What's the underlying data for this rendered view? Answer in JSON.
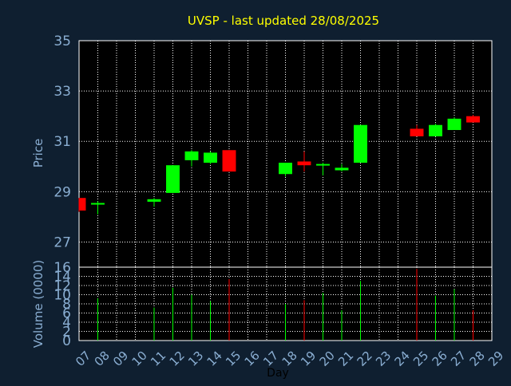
{
  "chart_data": [
    {
      "type": "candlestick",
      "title": "UVSP - last updated 28/08/2025",
      "ylabel": "Price",
      "ylim": [
        26,
        35
      ],
      "ytick_labels": [
        "27",
        "29",
        "31",
        "33",
        "35"
      ],
      "yticks": [
        27,
        29,
        31,
        33,
        35
      ],
      "grid": true,
      "colors": {
        "up": "#00ff00",
        "down": "#ff0000",
        "title": "#ffff00",
        "axis_text": "#8aaed2",
        "grid": "#ffffff",
        "background": "#0f1f30"
      },
      "candles": [
        {
          "day": 7,
          "open": 28.75,
          "high": 28.75,
          "low": 28.2,
          "close": 28.25
        },
        {
          "day": 8,
          "open": 28.5,
          "high": 28.62,
          "low": 28.1,
          "close": 28.55
        },
        {
          "day": 11,
          "open": 28.6,
          "high": 28.75,
          "low": 28.4,
          "close": 28.7
        },
        {
          "day": 12,
          "open": 28.95,
          "high": 30.05,
          "low": 28.95,
          "close": 30.05
        },
        {
          "day": 13,
          "open": 30.25,
          "high": 30.65,
          "low": 30.0,
          "close": 30.6
        },
        {
          "day": 14,
          "open": 30.15,
          "high": 30.6,
          "low": 30.1,
          "close": 30.55
        },
        {
          "day": 15,
          "open": 30.65,
          "high": 30.65,
          "low": 29.8,
          "close": 29.8
        },
        {
          "day": 18,
          "open": 29.7,
          "high": 30.15,
          "low": 29.6,
          "close": 30.15
        },
        {
          "day": 19,
          "open": 30.2,
          "high": 30.6,
          "low": 29.8,
          "close": 30.05
        },
        {
          "day": 20,
          "open": 30.05,
          "high": 30.15,
          "low": 29.65,
          "close": 30.1
        },
        {
          "day": 21,
          "open": 29.85,
          "high": 30.1,
          "low": 29.8,
          "close": 29.95
        },
        {
          "day": 22,
          "open": 30.15,
          "high": 31.65,
          "low": 30.15,
          "close": 31.65
        },
        {
          "day": 25,
          "open": 31.5,
          "high": 31.65,
          "low": 31.2,
          "close": 31.2
        },
        {
          "day": 26,
          "open": 31.2,
          "high": 31.7,
          "low": 31.2,
          "close": 31.65
        },
        {
          "day": 27,
          "open": 31.45,
          "high": 31.95,
          "low": 31.45,
          "close": 31.9
        },
        {
          "day": 28,
          "open": 32.0,
          "high": 32.05,
          "low": 31.75,
          "close": 31.75
        }
      ]
    },
    {
      "type": "bar",
      "ylabel": "Volume (0000)",
      "xlabel": "Day",
      "ylim": [
        0,
        16
      ],
      "ytick_labels": [
        "0",
        "2",
        "4",
        "6",
        "8",
        "10",
        "12",
        "14",
        "16"
      ],
      "yticks": [
        0,
        2,
        4,
        6,
        8,
        10,
        12,
        14,
        16
      ],
      "x_tick_labels": [
        "07",
        "08",
        "09",
        "10",
        "11",
        "12",
        "13",
        "14",
        "15",
        "16",
        "17",
        "18",
        "19",
        "20",
        "21",
        "22",
        "23",
        "24",
        "25",
        "26",
        "27",
        "28",
        "29"
      ],
      "bars": [
        {
          "day": 8,
          "value": 9.2,
          "dir": "up"
        },
        {
          "day": 11,
          "value": 7.2,
          "dir": "up"
        },
        {
          "day": 12,
          "value": 11.5,
          "dir": "up"
        },
        {
          "day": 13,
          "value": 10.0,
          "dir": "up"
        },
        {
          "day": 14,
          "value": 8.6,
          "dir": "up"
        },
        {
          "day": 15,
          "value": 13.4,
          "dir": "down"
        },
        {
          "day": 18,
          "value": 8.0,
          "dir": "up"
        },
        {
          "day": 19,
          "value": 8.8,
          "dir": "down"
        },
        {
          "day": 20,
          "value": 10.4,
          "dir": "up"
        },
        {
          "day": 21,
          "value": 6.6,
          "dir": "up"
        },
        {
          "day": 22,
          "value": 13.0,
          "dir": "up"
        },
        {
          "day": 25,
          "value": 15.6,
          "dir": "down"
        },
        {
          "day": 26,
          "value": 9.8,
          "dir": "up"
        },
        {
          "day": 27,
          "value": 11.2,
          "dir": "up"
        },
        {
          "day": 28,
          "value": 6.6,
          "dir": "down"
        }
      ]
    }
  ]
}
